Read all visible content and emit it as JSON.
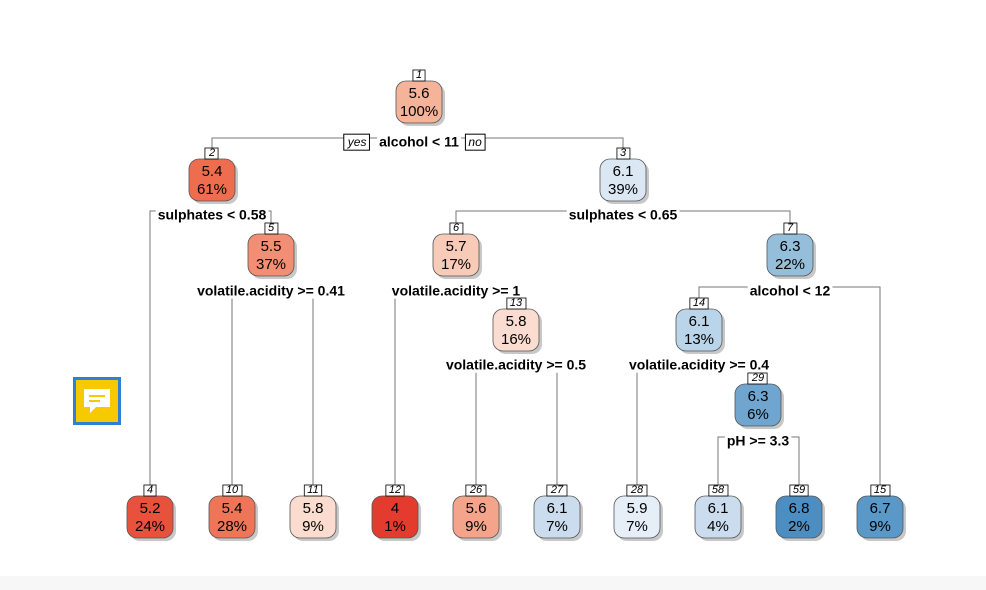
{
  "tree": {
    "branch_labels": {
      "yes": "yes",
      "no": "no"
    },
    "nodes": [
      {
        "id": "1",
        "value": "5.6",
        "pct": "100%",
        "color": "#f5b39a"
      },
      {
        "id": "2",
        "value": "5.4",
        "pct": "61%",
        "color": "#ee6d4f"
      },
      {
        "id": "3",
        "value": "6.1",
        "pct": "39%",
        "color": "#dbe8f4"
      },
      {
        "id": "5",
        "value": "5.5",
        "pct": "37%",
        "color": "#f28e74"
      },
      {
        "id": "6",
        "value": "5.7",
        "pct": "17%",
        "color": "#f8cbb8"
      },
      {
        "id": "7",
        "value": "6.3",
        "pct": "22%",
        "color": "#95bedb"
      },
      {
        "id": "13",
        "value": "5.8",
        "pct": "16%",
        "color": "#fadcd0"
      },
      {
        "id": "14",
        "value": "6.1",
        "pct": "13%",
        "color": "#bad4e9"
      },
      {
        "id": "29",
        "value": "6.3",
        "pct": "6%",
        "color": "#6fa5cf"
      },
      {
        "id": "4",
        "value": "5.2",
        "pct": "24%",
        "color": "#e8523c"
      },
      {
        "id": "10",
        "value": "5.4",
        "pct": "28%",
        "color": "#ef7558"
      },
      {
        "id": "11",
        "value": "5.8",
        "pct": "9%",
        "color": "#fbdcce"
      },
      {
        "id": "12",
        "value": "4",
        "pct": "1%",
        "color": "#e33b2e"
      },
      {
        "id": "26",
        "value": "5.6",
        "pct": "9%",
        "color": "#f4a48a"
      },
      {
        "id": "27",
        "value": "6.1",
        "pct": "7%",
        "color": "#cbdcee"
      },
      {
        "id": "28",
        "value": "5.9",
        "pct": "7%",
        "color": "#e6eef8"
      },
      {
        "id": "58",
        "value": "6.1",
        "pct": "4%",
        "color": "#cbdcee"
      },
      {
        "id": "59",
        "value": "6.8",
        "pct": "2%",
        "color": "#4d8ec2"
      },
      {
        "id": "15",
        "value": "6.7",
        "pct": "9%",
        "color": "#5a98c8"
      }
    ],
    "splits": [
      {
        "node": "1",
        "label": "alcohol < 11"
      },
      {
        "node": "2",
        "label": "sulphates < 0.58"
      },
      {
        "node": "3",
        "label": "sulphates < 0.65"
      },
      {
        "node": "5",
        "label": "volatile.acidity >= 0.41"
      },
      {
        "node": "6",
        "label": "volatile.acidity >= 1"
      },
      {
        "node": "7",
        "label": "alcohol < 12"
      },
      {
        "node": "13",
        "label": "volatile.acidity >= 0.5"
      },
      {
        "node": "14",
        "label": "volatile.acidity >= 0.4"
      },
      {
        "node": "29",
        "label": "pH >= 3.3"
      }
    ]
  },
  "note_button": {
    "icon": "comment-icon",
    "color": "#f7c900",
    "border_color": "#2f7fd3"
  }
}
